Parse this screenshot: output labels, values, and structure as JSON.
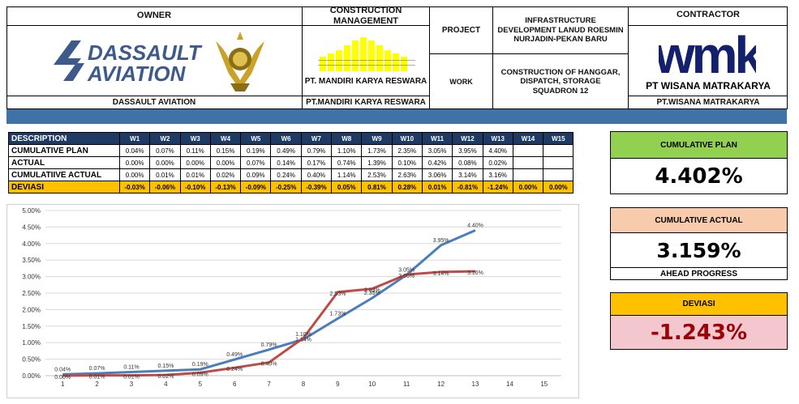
{
  "header": {
    "owner_title": "OWNER",
    "owner_logo_text": [
      "DASSAULT",
      "AVIATION"
    ],
    "owner_name": "DASSAULT AVIATION",
    "cm_title": "CONSTRUCTION MANAGEMENT",
    "cm_logo_text": "PT. MANDIRI KARYA RESWARA",
    "cm_name": "PT.MANDIRI KARYA RESWARA",
    "project_label": "PROJECT",
    "project_value": "INFRASTRUCTURE DEVELOPMENT LANUD ROESMIN NURJADIN-PEKAN BARU",
    "work_label": "WORK",
    "work_value": "CONSTRUCTION OF HANGGAR, DISPATCH, STORAGE SQUADRON 12",
    "contractor_title": "CONTRACTOR",
    "contractor_logo_text": "wmk",
    "contractor_logo_sub": "PT WISANA MATRAKARYA",
    "contractor_name": "PT.WISANA MATRAKARYA",
    "colors": {
      "band": "#3f73a8",
      "logo_blue": "#3d5a8a",
      "wmk_navy": "#14206b",
      "gold": "#c9a227"
    }
  },
  "table": {
    "columns": [
      "DESCRIPTION",
      "W1",
      "W2",
      "W3",
      "W4",
      "W5",
      "W6",
      "W7",
      "W8",
      "W9",
      "W10",
      "W11",
      "W12",
      "W13",
      "W14",
      "W15"
    ],
    "rows": [
      {
        "label": "CUMULATIVE PLAN",
        "values": [
          "0.04%",
          "0.07%",
          "0.11%",
          "0.15%",
          "0.19%",
          "0.49%",
          "0.79%",
          "1.10%",
          "1.73%",
          "2.35%",
          "3.05%",
          "3.95%",
          "4.40%",
          "",
          ""
        ]
      },
      {
        "label": "ACTUAL",
        "values": [
          "0.00%",
          "0.00%",
          "0.00%",
          "0.00%",
          "0.07%",
          "0.14%",
          "0.17%",
          "0.74%",
          "1.39%",
          "0.10%",
          "0.42%",
          "0.08%",
          "0.02%",
          "",
          ""
        ]
      },
      {
        "label": "CUMULATIIVE ACTUAL",
        "values": [
          "0.00%",
          "0.01%",
          "0.01%",
          "0.02%",
          "0.09%",
          "0.24%",
          "0.40%",
          "1.14%",
          "2.53%",
          "2.63%",
          "3.06%",
          "3.14%",
          "3.16%",
          "",
          ""
        ]
      },
      {
        "label": "DEVIASI",
        "values": [
          "-0.03%",
          "-0.06%",
          "-0.10%",
          "-0.13%",
          "-0.09%",
          "-0.25%",
          "-0.39%",
          "0.05%",
          "0.81%",
          "0.28%",
          "0.01%",
          "-0.81%",
          "-1.24%",
          "0.00%",
          "0.00%"
        ]
      }
    ],
    "colors": {
      "header_bg": "#1f3b63",
      "deviasi_bg": "#ffc000"
    }
  },
  "kpis": [
    {
      "label": "CUMULATIVE PLAN",
      "value": "4.402%",
      "head_color": "#92d050",
      "value_bg": "#ffffff",
      "value_color": "#000000"
    },
    {
      "label": "CUMULATIVE ACTUAL",
      "value": "3.159%",
      "note": "AHEAD PROGRESS",
      "head_color": "#f8cbad",
      "value_bg": "#ffffff",
      "value_color": "#000000"
    },
    {
      "label": "DEVIASI",
      "value": "-1.243%",
      "head_color": "#ffc000",
      "value_bg": "#f4c7ce",
      "value_color": "#9c0006"
    }
  ],
  "chart_data": {
    "type": "line",
    "x": [
      1,
      2,
      3,
      4,
      5,
      6,
      7,
      8,
      9,
      10,
      11,
      12,
      13
    ],
    "xticks": [
      "1",
      "2",
      "3",
      "4",
      "5",
      "6",
      "7",
      "8",
      "9",
      "10",
      "11",
      "12",
      "13",
      "14",
      "15"
    ],
    "xlim": [
      1,
      15
    ],
    "ylim": [
      0,
      5
    ],
    "yticks": [
      "0.00%",
      "0.50%",
      "1.00%",
      "1.50%",
      "2.00%",
      "2.50%",
      "3.00%",
      "3.50%",
      "4.00%",
      "4.50%",
      "5.00%"
    ],
    "grid": true,
    "series": [
      {
        "color": "#4a7ebb",
        "values": [
          0.04,
          0.07,
          0.11,
          0.15,
          0.19,
          0.49,
          0.79,
          1.1,
          1.73,
          2.35,
          3.05,
          3.95,
          4.4
        ],
        "labels": [
          "0.04%",
          "0.07%",
          "0.11%",
          "0.15%",
          "0.19%",
          "0.49%",
          "0.79%",
          "1.10%",
          "1.73%",
          "2.35%",
          "3.05%",
          "3.95%",
          "4.40%"
        ]
      },
      {
        "color": "#be4b48",
        "values": [
          0.0,
          0.01,
          0.01,
          0.02,
          0.09,
          0.24,
          0.4,
          1.14,
          2.53,
          2.63,
          3.06,
          3.14,
          3.16
        ],
        "labels": [
          "0.00%",
          "0.01%",
          "0.01%",
          "0.02%",
          "0.09%",
          "0.24%",
          "0.40%",
          "1.14%",
          "2.53%",
          "2.63%",
          "3.06%",
          "3.14%",
          "3.16%"
        ]
      }
    ]
  }
}
